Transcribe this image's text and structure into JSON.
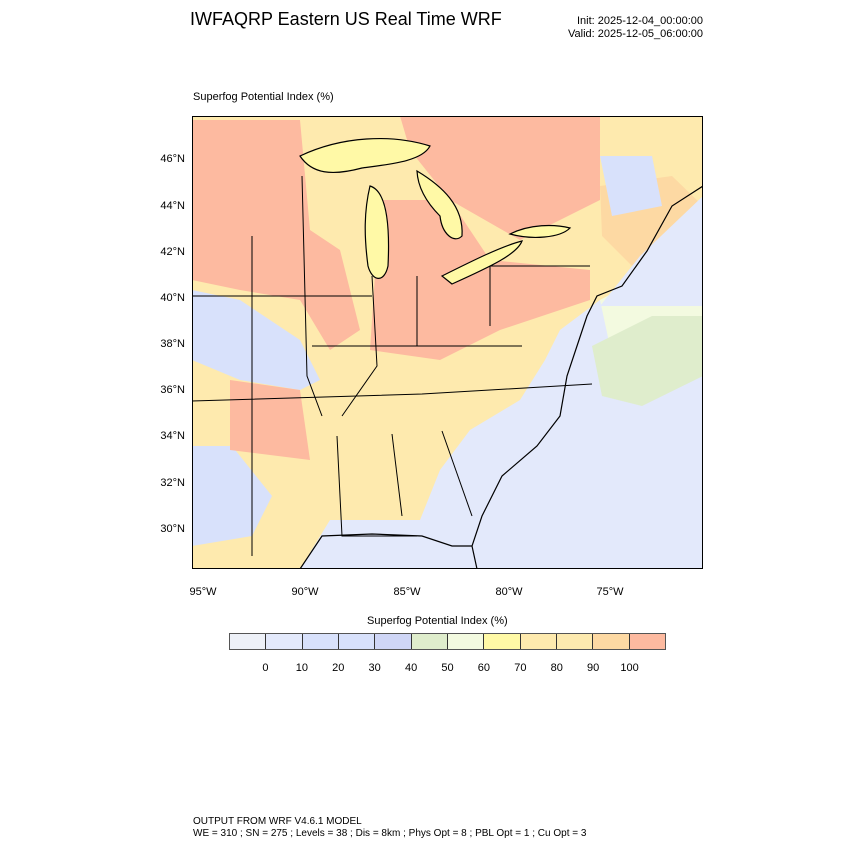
{
  "header": {
    "title": "IWFAQRP Eastern US Real Time WRF",
    "init": "Init: 2025-12-04_00:00:00",
    "valid": "Valid: 2025-12-05_06:00:00"
  },
  "map": {
    "field_title": "Superfog Potential Index   (%)",
    "lat_labels": [
      "46°N",
      "44°N",
      "42°N",
      "40°N",
      "38°N",
      "36°N",
      "34°N",
      "32°N",
      "30°N"
    ],
    "lon_labels": [
      "95°W",
      "90°W",
      "85°W",
      "80°W",
      "75°W"
    ]
  },
  "colorbar": {
    "title": "Superfog Potential Index  (%)",
    "labels": [
      "0",
      "10",
      "20",
      "30",
      "40",
      "50",
      "60",
      "70",
      "80",
      "90",
      "100"
    ],
    "colors": [
      "#eef1f8",
      "#e3e9fb",
      "#d8e1fb",
      "#d8e1fb",
      "#cfd6f6",
      "#dfedcc",
      "#f3fae0",
      "#fff9a6",
      "#feeaae",
      "#fdeaaf",
      "#fdd9a3",
      "#fdbaa0"
    ]
  },
  "footer": {
    "line1": "OUTPUT FROM WRF V4.6.1 MODEL",
    "line2": "WE = 310 ; SN = 275 ; Levels = 38 ; Dis = 8km ; Phys Opt = 8 ; PBL Opt = 1 ; Cu Opt = 3"
  }
}
